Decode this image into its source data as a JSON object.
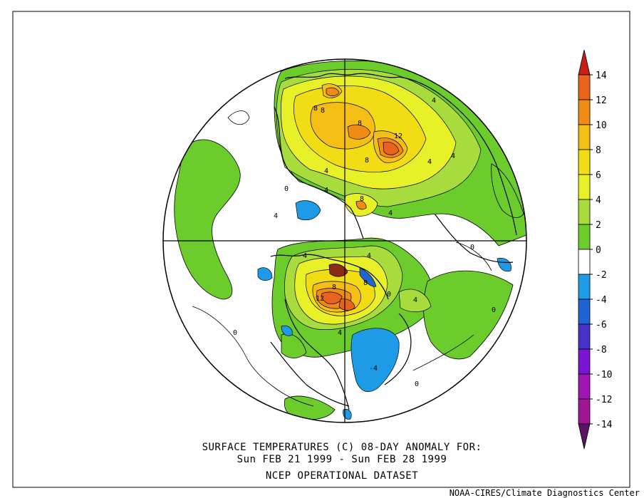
{
  "map": {
    "projection": "north-polar-stereographic",
    "field": "surface temperature anomaly",
    "contour_interval": 2,
    "contour_labels": [
      {
        "text": "8"
      },
      {
        "text": "8"
      },
      {
        "text": "8"
      },
      {
        "text": "12"
      },
      {
        "text": "8"
      },
      {
        "text": "4"
      },
      {
        "text": "4"
      },
      {
        "text": "4"
      },
      {
        "text": "4"
      },
      {
        "text": "4"
      },
      {
        "text": "0"
      },
      {
        "text": "4"
      },
      {
        "text": "8"
      },
      {
        "text": "4"
      },
      {
        "text": "0"
      },
      {
        "text": "4"
      },
      {
        "text": "4"
      },
      {
        "text": "8"
      },
      {
        "text": "12"
      },
      {
        "text": "0"
      },
      {
        "text": "4"
      },
      {
        "text": "4"
      },
      {
        "text": "-4"
      },
      {
        "text": "0"
      },
      {
        "text": "0"
      },
      {
        "text": "0"
      },
      {
        "text": "8"
      }
    ]
  },
  "colorbar": {
    "bins": [
      {
        "lo": 12,
        "hi": 14,
        "color": "#e8641c"
      },
      {
        "lo": 10,
        "hi": 12,
        "color": "#f08c14"
      },
      {
        "lo": 8,
        "hi": 10,
        "color": "#f5be14"
      },
      {
        "lo": 6,
        "hi": 8,
        "color": "#f2dc14"
      },
      {
        "lo": 4,
        "hi": 6,
        "color": "#e8f028"
      },
      {
        "lo": 2,
        "hi": 4,
        "color": "#a8dc3c"
      },
      {
        "lo": 0,
        "hi": 2,
        "color": "#6ccc2c"
      },
      {
        "lo": -2,
        "hi": 0,
        "color": "#ffffff"
      },
      {
        "lo": -4,
        "hi": -2,
        "color": "#1e9be6"
      },
      {
        "lo": -6,
        "hi": -4,
        "color": "#1e64d2"
      },
      {
        "lo": -8,
        "hi": -6,
        "color": "#4632c8"
      },
      {
        "lo": -10,
        "hi": -8,
        "color": "#7814d2"
      },
      {
        "lo": -12,
        "hi": -10,
        "color": "#a014b4"
      },
      {
        "lo": -14,
        "hi": -12,
        "color": "#a01496"
      }
    ],
    "top_arrow_color": "#c81e14",
    "bottom_arrow_color": "#5a1464",
    "tick_labels": [
      "14",
      "12",
      "10",
      "8",
      "6",
      "4",
      "2",
      "0",
      "-2",
      "-4",
      "-6",
      "-8",
      "-10",
      "-12",
      "-14"
    ]
  },
  "caption": {
    "line1": "SURFACE TEMPERATURES (C)   08-DAY ANOMALY FOR:",
    "line2": "Sun FEB 21 1999 - Sun FEB 28 1999",
    "line3": "NCEP OPERATIONAL DATASET"
  },
  "credit": "NOAA-CIRES/Climate Diagnostics Center",
  "colors": {
    "warm_strong": "#e8641c",
    "warm_orange": "#f08c14",
    "warm_yellow": "#f5be14",
    "yellow": "#f2dc14",
    "light_yellow": "#e8f028",
    "yellow_green": "#a8dc3c",
    "green": "#6ccc2c",
    "cold_light": "#1e9be6",
    "dark_brown": "#8c2a14"
  }
}
